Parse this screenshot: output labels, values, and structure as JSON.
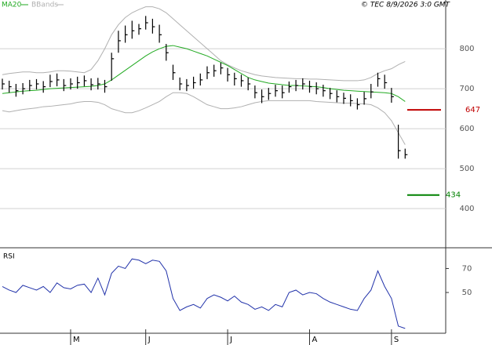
{
  "chart_data": [
    {
      "type": "ohlc",
      "legend": "top-left",
      "grid": true,
      "bar_color": "#000000",
      "copyright": "© TEC 8/9/2026 3:0 GMT",
      "categories": [
        null,
        null,
        null,
        null,
        null,
        null,
        null,
        null,
        null,
        null,
        "M",
        null,
        null,
        null,
        null,
        null,
        null,
        null,
        null,
        null,
        null,
        "J",
        null,
        null,
        null,
        null,
        null,
        null,
        null,
        null,
        null,
        null,
        null,
        "J",
        null,
        null,
        null,
        null,
        null,
        null,
        null,
        null,
        null,
        null,
        null,
        "A",
        null,
        null,
        null,
        null,
        null,
        null,
        null,
        null,
        null,
        null,
        null,
        "S",
        null,
        null
      ],
      "high": [
        725,
        720,
        712,
        714,
        722,
        724,
        719,
        735,
        738,
        724,
        726,
        730,
        733,
        726,
        727,
        722,
        790,
        845,
        858,
        870,
        862,
        882,
        875,
        860,
        812,
        760,
        728,
        724,
        730,
        738,
        756,
        760,
        765,
        752,
        740,
        735,
        728,
        708,
        698,
        702,
        710,
        708,
        718,
        722,
        726,
        720,
        716,
        710,
        702,
        696,
        690,
        686,
        676,
        692,
        712,
        740,
        735,
        702,
        610,
        550
      ],
      "low": [
        698,
        690,
        680,
        686,
        694,
        698,
        690,
        704,
        706,
        694,
        698,
        700,
        706,
        696,
        698,
        690,
        720,
        790,
        815,
        825,
        835,
        848,
        838,
        815,
        770,
        722,
        696,
        694,
        700,
        708,
        724,
        730,
        736,
        718,
        708,
        705,
        696,
        676,
        664,
        672,
        680,
        676,
        690,
        694,
        698,
        690,
        686,
        680,
        674,
        666,
        662,
        656,
        648,
        660,
        676,
        705,
        700,
        665,
        525,
        525
      ],
      "close": [
        712,
        705,
        695,
        700,
        708,
        712,
        705,
        718,
        722,
        708,
        712,
        715,
        720,
        710,
        712,
        705,
        775,
        820,
        835,
        845,
        850,
        865,
        855,
        835,
        790,
        740,
        712,
        708,
        715,
        722,
        740,
        745,
        752,
        735,
        725,
        720,
        712,
        690,
        680,
        688,
        695,
        690,
        705,
        708,
        712,
        705,
        700,
        695,
        688,
        680,
        676,
        670,
        660,
        675,
        692,
        725,
        715,
        680,
        545,
        535
      ],
      "series": [
        {
          "name": "MA20",
          "color": "#22aa22",
          "values": [
            688,
            690,
            692,
            694,
            695,
            696,
            698,
            700,
            701,
            702,
            703,
            704,
            705,
            706,
            708,
            712,
            722,
            734,
            746,
            758,
            770,
            782,
            792,
            800,
            806,
            808,
            804,
            800,
            794,
            788,
            782,
            774,
            766,
            758,
            748,
            738,
            728,
            722,
            718,
            714,
            712,
            710,
            708,
            708,
            707,
            706,
            705,
            703,
            700,
            698,
            696,
            695,
            694,
            693,
            692,
            691,
            690,
            688,
            680,
            668
          ]
        },
        {
          "name": "BBands",
          "color": "#b0b0b0",
          "upper": [
            735,
            738,
            740,
            742,
            742,
            740,
            740,
            742,
            745,
            745,
            744,
            742,
            740,
            748,
            770,
            800,
            835,
            860,
            878,
            890,
            898,
            905,
            905,
            900,
            890,
            875,
            860,
            845,
            830,
            815,
            800,
            785,
            770,
            760,
            752,
            745,
            740,
            735,
            732,
            730,
            728,
            727,
            726,
            725,
            725,
            724,
            724,
            723,
            722,
            721,
            720,
            720,
            720,
            722,
            728,
            738,
            745,
            750,
            760,
            768
          ],
          "lower": [
            645,
            642,
            645,
            648,
            650,
            652,
            655,
            656,
            658,
            660,
            662,
            666,
            668,
            668,
            666,
            660,
            650,
            645,
            640,
            640,
            645,
            652,
            660,
            668,
            680,
            690,
            690,
            688,
            680,
            670,
            660,
            655,
            650,
            650,
            652,
            655,
            660,
            665,
            668,
            670,
            670,
            670,
            670,
            670,
            670,
            670,
            668,
            667,
            666,
            665,
            664,
            664,
            663,
            662,
            660,
            652,
            640,
            620,
            590,
            560
          ]
        }
      ],
      "levels": [
        {
          "value": 647,
          "color": "#c00000"
        },
        {
          "value": 434,
          "color": "#008000"
        }
      ],
      "ylim": [
        304,
        918
      ],
      "yticks": [
        400,
        500,
        600,
        700,
        800
      ]
    },
    {
      "type": "line",
      "title": "RSI",
      "grid": false,
      "series": [
        {
          "name": null,
          "color": "#2233aa",
          "values": [
            55,
            52,
            50,
            56,
            54,
            52,
            55,
            50,
            58,
            54,
            53,
            56,
            57,
            50,
            62,
            48,
            66,
            72,
            70,
            78,
            77,
            74,
            77,
            76,
            68,
            45,
            35,
            38,
            40,
            37,
            45,
            48,
            46,
            43,
            47,
            42,
            40,
            36,
            38,
            35,
            40,
            38,
            50,
            52,
            48,
            50,
            49,
            45,
            42,
            40,
            38,
            36,
            35,
            45,
            52,
            68,
            55,
            45,
            22,
            20
          ]
        }
      ],
      "ylim": [
        16,
        86
      ],
      "yticks": [
        50,
        70
      ]
    }
  ]
}
